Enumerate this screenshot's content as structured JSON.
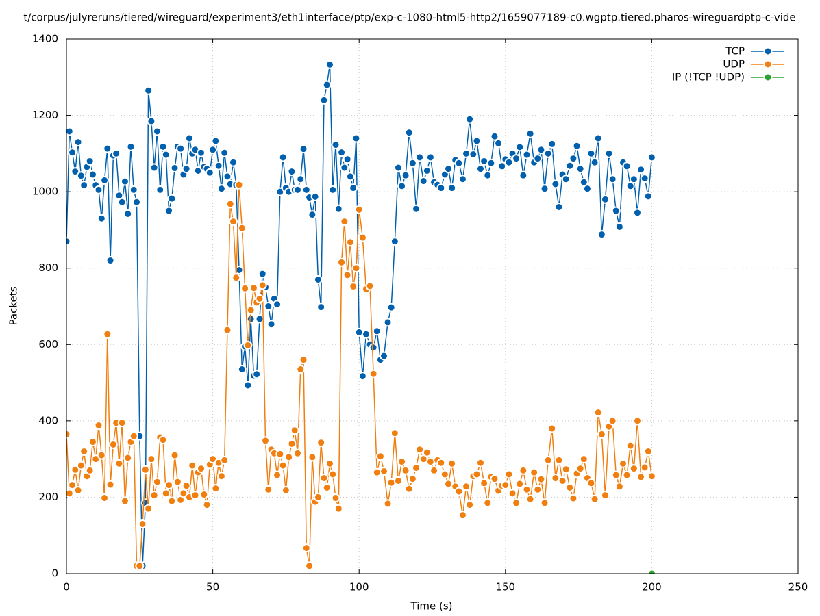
{
  "chart_data": {
    "type": "line",
    "title": "t/corpus/julyreruns/tiered/wireguard/experiment3/eth1interface/ptp/exp-c-1080-html5-http2/1659077189-c0.wgptp.tiered.pharos-wireguardptp-c-vide",
    "x_label": "Time (s)",
    "y_label": "Packets",
    "xlim": [
      0,
      250
    ],
    "xticks": [
      0,
      50,
      100,
      150,
      200,
      250
    ],
    "ylim": [
      0,
      1400
    ],
    "yticks": [
      0,
      200,
      400,
      600,
      800,
      1000,
      1200,
      1400
    ],
    "grid": true,
    "legend": "top-right",
    "x": [
      0,
      1,
      2,
      3,
      4,
      5,
      6,
      7,
      8,
      9,
      10,
      11,
      12,
      13,
      14,
      15,
      16,
      17,
      18,
      19,
      20,
      21,
      22,
      23,
      24,
      25,
      26,
      27,
      28,
      29,
      30,
      31,
      32,
      33,
      34,
      35,
      36,
      37,
      38,
      39,
      40,
      41,
      42,
      43,
      44,
      45,
      46,
      47,
      48,
      49,
      50,
      51,
      52,
      53,
      54,
      55,
      56,
      57,
      58,
      59,
      60,
      61,
      62,
      63,
      64,
      65,
      66,
      67,
      68,
      69,
      70,
      71,
      72,
      73,
      74,
      75,
      76,
      77,
      78,
      79,
      80,
      81,
      82,
      83,
      84,
      85,
      86,
      87,
      88,
      89,
      90,
      91,
      92,
      93,
      94,
      95,
      96,
      97,
      98,
      99,
      100,
      101.2,
      102.4,
      103.7,
      104.9,
      106.1,
      107.3,
      108.5,
      109.8,
      111.0,
      112.2,
      113.4,
      114.6,
      115.9,
      117.1,
      118.3,
      119.5,
      120.7,
      122.0,
      123.2,
      124.4,
      125.6,
      126.8,
      128.0,
      129.3,
      130.5,
      131.7,
      132.9,
      134.1,
      135.4,
      136.6,
      137.8,
      139.0,
      140.2,
      141.5,
      142.7,
      143.9,
      145.1,
      146.3,
      147.6,
      148.8,
      150.0,
      151.2,
      152.4,
      153.7,
      154.9,
      156.1,
      157.3,
      158.5,
      159.8,
      161.0,
      162.2,
      163.4,
      164.6,
      165.9,
      167.1,
      168.3,
      169.5,
      170.7,
      172.0,
      173.2,
      174.4,
      175.6,
      176.8,
      178.0,
      179.3,
      180.5,
      181.7,
      182.9,
      184.1,
      185.4,
      186.6,
      187.8,
      189.0,
      190.2,
      191.5,
      192.7,
      193.9,
      195.1,
      196.3,
      197.6,
      198.8,
      200.0
    ],
    "series": [
      {
        "name": "TCP",
        "color": "#0060ad",
        "values": [
          870,
          1158,
          1103,
          1053,
          1130,
          1042,
          1017,
          1065,
          1080,
          1045,
          1017,
          1005,
          930,
          1030,
          1113,
          820,
          1095,
          1100,
          990,
          973,
          1027,
          942,
          1118,
          1005,
          973,
          360,
          20,
          185,
          1265,
          1185,
          1063,
          1158,
          1005,
          1118,
          1097,
          950,
          982,
          1062,
          1118,
          1113,
          1045,
          1060,
          1140,
          1100,
          1110,
          1055,
          1102,
          1065,
          1060,
          1050,
          1110,
          1133,
          1068,
          1008,
          1102,
          1040,
          1020,
          1077,
          1018,
          795,
          535,
          595,
          493,
          667,
          518,
          522,
          667,
          785,
          750,
          700,
          653,
          720,
          705,
          1000,
          1090,
          1010,
          1000,
          1053,
          1005,
          1005,
          1033,
          1112,
          1005,
          985,
          940,
          987,
          770,
          698,
          1240,
          1280,
          1333,
          1005,
          1123,
          955,
          1103,
          1063,
          1085,
          1040,
          1010,
          1140,
          632,
          517,
          627,
          600,
          592,
          635,
          560,
          570,
          658,
          697,
          870,
          1063,
          1015,
          1043,
          1155,
          1075,
          955,
          1090,
          1028,
          1055,
          1090,
          1025,
          1018,
          1010,
          1045,
          1060,
          1010,
          1083,
          1075,
          1033,
          1100,
          1190,
          1098,
          1133,
          1060,
          1080,
          1043,
          1075,
          1145,
          1127,
          1067,
          1085,
          1077,
          1100,
          1087,
          1117,
          1043,
          1097,
          1152,
          1077,
          1087,
          1110,
          1008,
          1100,
          1125,
          1020,
          960,
          1045,
          1033,
          1068,
          1087,
          1120,
          1060,
          1025,
          1008,
          1100,
          1077,
          1140,
          888,
          980,
          1100,
          1033,
          950,
          908,
          1077,
          1067,
          1015,
          1033,
          945,
          1058,
          1035,
          988,
          1090
        ]
      },
      {
        "name": "UDP",
        "color": "#f07f10",
        "values": [
          365,
          210,
          232,
          272,
          218,
          283,
          320,
          255,
          270,
          345,
          300,
          388,
          310,
          198,
          627,
          233,
          338,
          395,
          288,
          395,
          190,
          303,
          345,
          360,
          20,
          20,
          130,
          272,
          170,
          300,
          205,
          240,
          357,
          350,
          210,
          232,
          190,
          310,
          240,
          193,
          210,
          230,
          200,
          283,
          205,
          265,
          275,
          207,
          180,
          285,
          300,
          223,
          290,
          255,
          297,
          638,
          968,
          922,
          775,
          1018,
          905,
          747,
          598,
          690,
          748,
          710,
          720,
          755,
          348,
          220,
          325,
          315,
          258,
          313,
          283,
          218,
          305,
          340,
          375,
          315,
          535,
          560,
          67,
          20,
          305,
          188,
          200,
          343,
          250,
          225,
          288,
          260,
          198,
          170,
          815,
          922,
          782,
          868,
          752,
          800,
          953,
          880,
          745,
          753,
          523,
          265,
          307,
          268,
          183,
          238,
          368,
          243,
          293,
          270,
          222,
          248,
          277,
          325,
          300,
          317,
          293,
          270,
          297,
          290,
          260,
          235,
          288,
          228,
          215,
          153,
          228,
          180,
          255,
          260,
          290,
          237,
          185,
          253,
          248,
          217,
          230,
          232,
          260,
          210,
          185,
          235,
          270,
          220,
          195,
          265,
          220,
          247,
          185,
          297,
          380,
          250,
          297,
          243,
          273,
          225,
          197,
          262,
          275,
          300,
          250,
          237,
          195,
          422,
          365,
          205,
          385,
          400,
          258,
          228,
          288,
          258,
          335,
          275,
          400,
          253,
          278,
          320,
          255
        ]
      },
      {
        "name": "IP (!TCP  !UDP)",
        "color": "#2ca02c",
        "x": [
          200
        ],
        "values": [
          0
        ]
      }
    ]
  }
}
